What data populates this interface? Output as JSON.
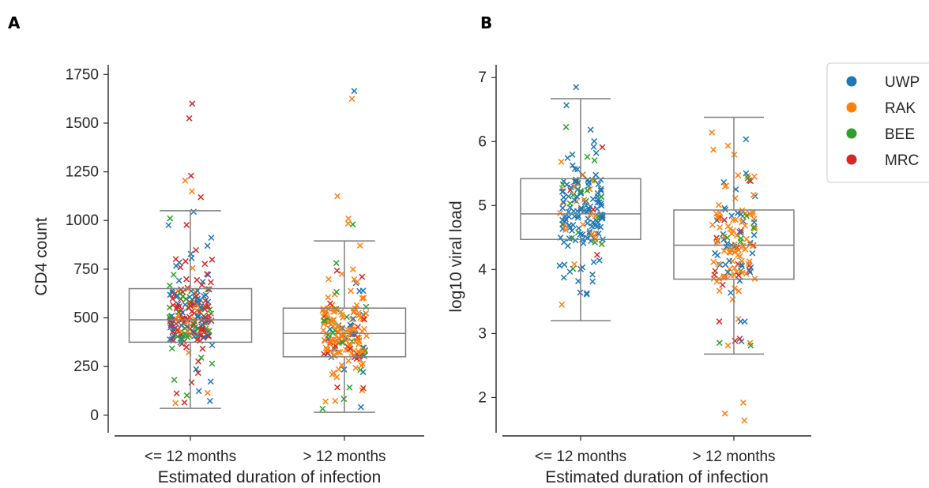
{
  "figure": {
    "panels": [
      "A",
      "B"
    ],
    "legend": [
      {
        "label": "UWP",
        "color": "#1f77b4"
      },
      {
        "label": "RAK",
        "color": "#ff7f0e"
      },
      {
        "label": "BEE",
        "color": "#2ca02c"
      },
      {
        "label": "MRC",
        "color": "#d62728"
      }
    ]
  },
  "chart_data": [
    {
      "type": "box",
      "panel": "A",
      "xlabel": "Estimated duration of infection",
      "ylabel": "CD4 count",
      "categories": [
        "<= 12 months",
        "> 12 months"
      ],
      "ylim": [
        -90,
        1800
      ],
      "yticks": [
        0,
        250,
        500,
        750,
        1000,
        1250,
        1500,
        1750
      ],
      "boxes": [
        {
          "category": "<= 12 months",
          "whisker_low": 35,
          "q1": 375,
          "median": 490,
          "q3": 650,
          "whisker_high": 1050
        },
        {
          "category": "> 12 months",
          "whisker_low": 15,
          "q1": 300,
          "median": 420,
          "q3": 550,
          "whisker_high": 895
        }
      ],
      "outliers": [
        {
          "category": "<= 12 months",
          "y": 1600,
          "group": "MRC"
        },
        {
          "category": "<= 12 months",
          "y": 1525,
          "group": "MRC"
        },
        {
          "category": "<= 12 months",
          "y": 1230,
          "group": "MRC"
        },
        {
          "category": "<= 12 months",
          "y": 1205,
          "group": "RAK"
        },
        {
          "category": "<= 12 months",
          "y": 1150,
          "group": "RAK"
        },
        {
          "category": "<= 12 months",
          "y": 1120,
          "group": "MRC"
        },
        {
          "category": "> 12 months",
          "y": 1665,
          "group": "UWP"
        },
        {
          "category": "> 12 months",
          "y": 1625,
          "group": "RAK"
        },
        {
          "category": "> 12 months",
          "y": 1125,
          "group": "RAK"
        },
        {
          "category": "> 12 months",
          "y": 1010,
          "group": "RAK"
        },
        {
          "category": "> 12 months",
          "y": 985,
          "group": "RAK"
        },
        {
          "category": "> 12 months",
          "y": 980,
          "group": "GREEN"
        }
      ],
      "scatter_summary": {
        "n_per_category": [
          210,
          190
        ],
        "marker": "x",
        "hue": "site"
      }
    },
    {
      "type": "box",
      "panel": "B",
      "xlabel": "Estimated duration of infection",
      "ylabel": "log10 viral load",
      "categories": [
        "<= 12 months",
        "> 12 months"
      ],
      "ylim": [
        1.45,
        7.2
      ],
      "yticks": [
        2,
        3,
        4,
        5,
        6,
        7
      ],
      "boxes": [
        {
          "category": "<= 12 months",
          "whisker_low": 3.2,
          "q1": 4.47,
          "median": 4.87,
          "q3": 5.42,
          "whisker_high": 6.67
        },
        {
          "category": "> 12 months",
          "whisker_low": 2.68,
          "q1": 3.85,
          "median": 4.38,
          "q3": 4.93,
          "whisker_high": 6.38
        }
      ],
      "outliers": [
        {
          "category": "<= 12 months",
          "y": 6.85,
          "group": "UWP"
        },
        {
          "category": "> 12 months",
          "y": 1.92,
          "group": "RAK"
        },
        {
          "category": "> 12 months",
          "y": 1.75,
          "group": "RAK"
        },
        {
          "category": "> 12 months",
          "y": 1.64,
          "group": "RAK"
        }
      ],
      "scatter_summary": {
        "n_per_category": [
          170,
          150
        ],
        "marker": "x",
        "hue": "site"
      }
    }
  ]
}
